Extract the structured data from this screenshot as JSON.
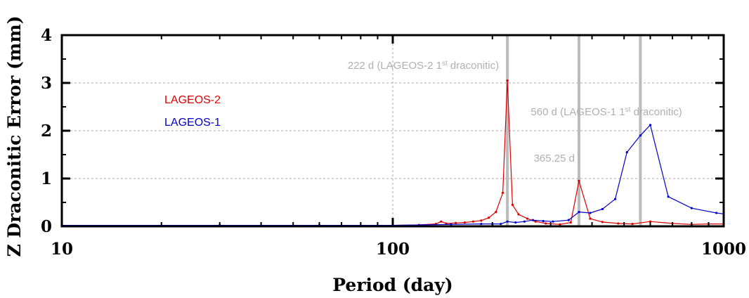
{
  "chart_data": {
    "type": "line",
    "xlabel": "Period (day)",
    "ylabel": "Z Draconitic Error (mm)",
    "xscale": "log",
    "xlim": [
      10,
      1000
    ],
    "ylim": [
      0,
      4
    ],
    "x_ticks": [
      {
        "value": 10,
        "label": "10"
      },
      {
        "value": 100,
        "label": "100"
      },
      {
        "value": 1000,
        "label": "1000"
      }
    ],
    "y_ticks": [
      {
        "value": 0,
        "label": "0"
      },
      {
        "value": 1,
        "label": "1"
      },
      {
        "value": 2,
        "label": "2"
      },
      {
        "value": 3,
        "label": "3"
      },
      {
        "value": 4,
        "label": "4"
      }
    ],
    "grid": "dashed",
    "series": [
      {
        "name": "LAGEOS-2",
        "color": "#dd0000",
        "points": [
          [
            10,
            0.02
          ],
          [
            30,
            0.02
          ],
          [
            60,
            0.02
          ],
          [
            100,
            0.02
          ],
          [
            120,
            0.03
          ],
          [
            135,
            0.05
          ],
          [
            140,
            0.1
          ],
          [
            145,
            0.06
          ],
          [
            155,
            0.07
          ],
          [
            165,
            0.08
          ],
          [
            175,
            0.1
          ],
          [
            185,
            0.12
          ],
          [
            195,
            0.18
          ],
          [
            205,
            0.3
          ],
          [
            215,
            0.7
          ],
          [
            222,
            3.05
          ],
          [
            230,
            0.45
          ],
          [
            240,
            0.25
          ],
          [
            255,
            0.16
          ],
          [
            270,
            0.1
          ],
          [
            290,
            0.06
          ],
          [
            320,
            0.04
          ],
          [
            345,
            0.08
          ],
          [
            365.25,
            0.95
          ],
          [
            395,
            0.16
          ],
          [
            430,
            0.09
          ],
          [
            480,
            0.06
          ],
          [
            530,
            0.05
          ],
          [
            600,
            0.1
          ],
          [
            700,
            0.06
          ],
          [
            800,
            0.04
          ],
          [
            900,
            0.05
          ],
          [
            1000,
            0.05
          ]
        ]
      },
      {
        "name": "LAGEOS-1",
        "color": "#0000cc",
        "points": [
          [
            10,
            0.02
          ],
          [
            30,
            0.02
          ],
          [
            60,
            0.02
          ],
          [
            100,
            0.02
          ],
          [
            150,
            0.04
          ],
          [
            185,
            0.05
          ],
          [
            200,
            0.05
          ],
          [
            212,
            0.05
          ],
          [
            222,
            0.1
          ],
          [
            235,
            0.08
          ],
          [
            250,
            0.1
          ],
          [
            265,
            0.13
          ],
          [
            285,
            0.11
          ],
          [
            305,
            0.1
          ],
          [
            340,
            0.13
          ],
          [
            365.25,
            0.3
          ],
          [
            395,
            0.28
          ],
          [
            430,
            0.36
          ],
          [
            470,
            0.57
          ],
          [
            510,
            1.55
          ],
          [
            560,
            1.9
          ],
          [
            600,
            2.12
          ],
          [
            680,
            0.62
          ],
          [
            800,
            0.38
          ],
          [
            950,
            0.28
          ],
          [
            1000,
            0.26
          ]
        ]
      }
    ],
    "legend": [
      "LAGEOS-2",
      "LAGEOS-1"
    ],
    "legend_placement": "top-left",
    "annotations": [
      {
        "x": 222,
        "label": "222 d (LAGEOS-2 1",
        "sup": "st",
        "suffix": " draconitic)"
      },
      {
        "x": 365.25,
        "label": "365.25 d",
        "sup": "",
        "suffix": ""
      },
      {
        "x": 560,
        "label": "560 d (LAGEOS-1 1",
        "sup": "st",
        "suffix": " draconitic)"
      }
    ],
    "marker_line_color": "#bbbbbb"
  }
}
